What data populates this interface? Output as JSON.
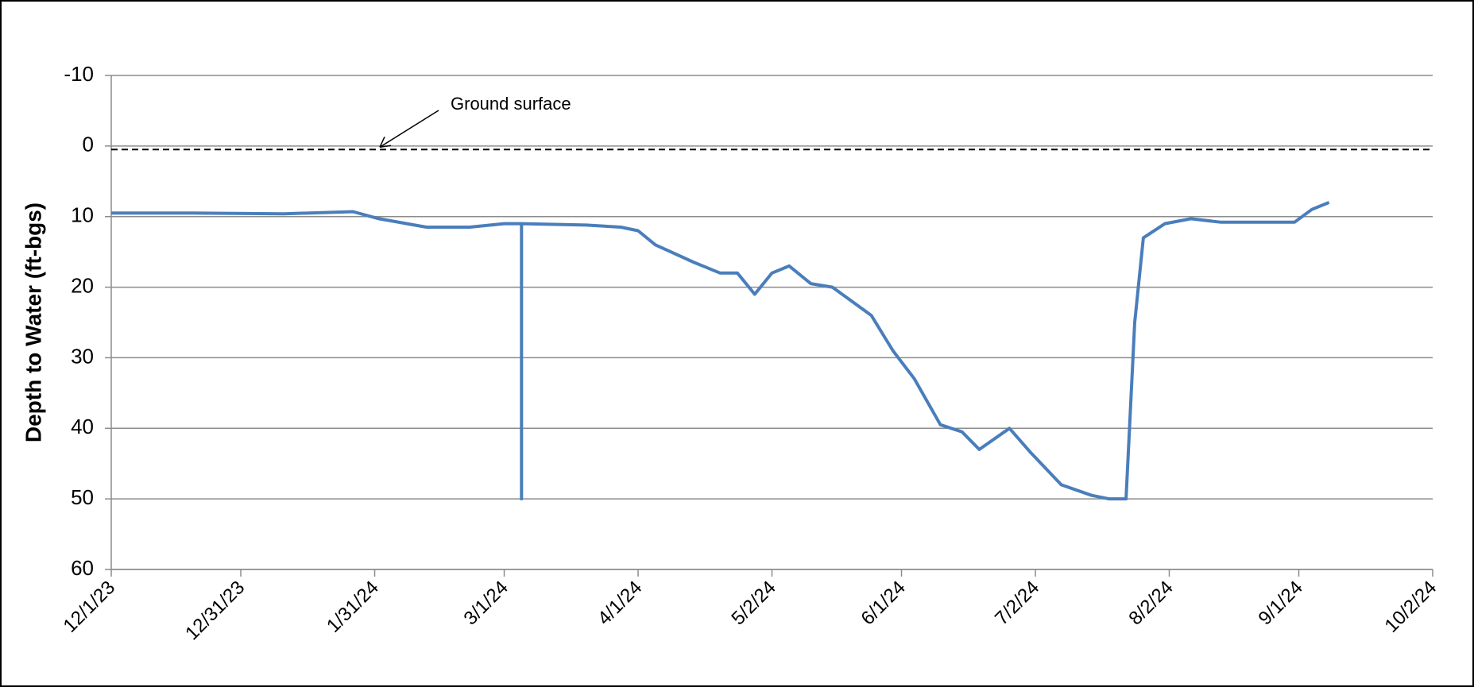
{
  "chart_data": {
    "type": "line",
    "y_label": "Depth to Water (ft-bgs)",
    "x": [
      "2023-12-01",
      "2023-12-20",
      "2024-01-10",
      "2024-01-26",
      "2024-02-01",
      "2024-02-12",
      "2024-02-22",
      "2024-03-01",
      "2024-03-05",
      "2024-03-05",
      "2024-03-05",
      "2024-03-20",
      "2024-03-28",
      "2024-04-01",
      "2024-04-05",
      "2024-04-14",
      "2024-04-20",
      "2024-04-24",
      "2024-04-28",
      "2024-05-02",
      "2024-05-06",
      "2024-05-11",
      "2024-05-16",
      "2024-05-25",
      "2024-05-30",
      "2024-06-04",
      "2024-06-10",
      "2024-06-15",
      "2024-06-19",
      "2024-06-26",
      "2024-07-01",
      "2024-07-08",
      "2024-07-15",
      "2024-07-19",
      "2024-07-23",
      "2024-07-25",
      "2024-07-27",
      "2024-08-01",
      "2024-08-07",
      "2024-08-14",
      "2024-08-23",
      "2024-08-31",
      "2024-09-04",
      "2024-09-08"
    ],
    "series": [
      {
        "name": "Depth to Water",
        "color": "#4a7ebb",
        "values": [
          9.5,
          9.5,
          9.6,
          9.3,
          10.3,
          11.5,
          11.5,
          11.0,
          11.0,
          50,
          11.0,
          11.2,
          11.5,
          12,
          14,
          16.5,
          18,
          18,
          21,
          18,
          17,
          19.5,
          20,
          24,
          29,
          33,
          39.5,
          40.5,
          43,
          40,
          43.5,
          48,
          49.5,
          50,
          50,
          25,
          13,
          11,
          10.3,
          10.8,
          10.8,
          10.8,
          9,
          8
        ]
      }
    ],
    "xlim": [
      "2023-12-01",
      "2024-10-02"
    ],
    "xticks": [
      {
        "value": "2023-12-01",
        "label": "12/1/23"
      },
      {
        "value": "2023-12-31",
        "label": "12/31/23"
      },
      {
        "value": "2024-01-31",
        "label": "1/31/24"
      },
      {
        "value": "2024-03-01",
        "label": "3/1/24"
      },
      {
        "value": "2024-04-01",
        "label": "4/1/24"
      },
      {
        "value": "2024-05-02",
        "label": "5/2/24"
      },
      {
        "value": "2024-06-01",
        "label": "6/1/24"
      },
      {
        "value": "2024-07-02",
        "label": "7/2/24"
      },
      {
        "value": "2024-08-02",
        "label": "8/2/24"
      },
      {
        "value": "2024-09-01",
        "label": "9/1/24"
      },
      {
        "value": "2024-10-02",
        "label": "10/2/24"
      }
    ],
    "ylim": [
      60,
      -10
    ],
    "yticks": [
      -10,
      0,
      10,
      20,
      30,
      40,
      50,
      60
    ],
    "grid": true,
    "ground_surface": {
      "label": "Ground surface",
      "value": 0.5
    }
  }
}
